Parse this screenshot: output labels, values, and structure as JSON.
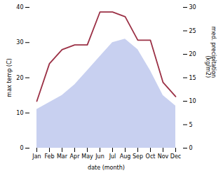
{
  "chart_data": {
    "type": "area",
    "categories": [
      "Jan",
      "Feb",
      "Mar",
      "Apr",
      "May",
      "Jun",
      "Jul",
      "Aug",
      "Sep",
      "Oct",
      "Nov",
      "Dec"
    ],
    "xlabel": "date (month)",
    "ylabel": "max temp (C)",
    "y2label": "med. precipitation\n(kg/m2)",
    "ylim": [
      0,
      40
    ],
    "yticks": [
      0,
      10,
      20,
      30,
      40
    ],
    "y2lim": [
      0,
      30
    ],
    "y2ticks": [
      0,
      5,
      10,
      15,
      20,
      25,
      30
    ],
    "series": [
      {
        "type": "area",
        "color": "#c8d0f0",
        "values": [
          11,
          13,
          15,
          18,
          22,
          26,
          30,
          31,
          28,
          22,
          15,
          12
        ]
      },
      {
        "type": "line",
        "color": "#9b3045",
        "axis": "y2",
        "values": [
          10,
          18,
          21,
          22,
          22,
          29,
          29,
          28,
          23,
          23,
          14,
          11
        ]
      }
    ]
  }
}
